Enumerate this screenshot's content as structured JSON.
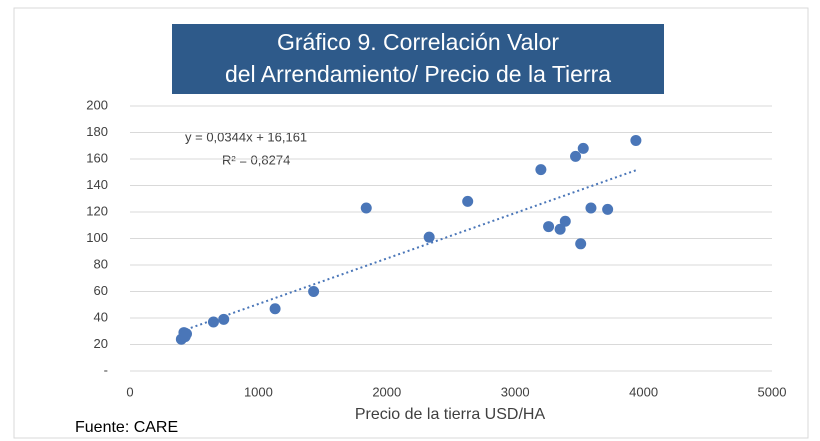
{
  "chart_data": {
    "type": "scatter",
    "title": "Gráfico 9. Correlación Valor del Arrendamiento/ Precio de la Tierra",
    "x_label": "Precio de la tierra USD/HA",
    "annotations": [
      "y = 0,0344x + 16,161",
      "R² = 0,8274"
    ],
    "source": "Fuente: CARE",
    "color": "#4a76b8",
    "trendline": true,
    "x": [
      400,
      420,
      440,
      430,
      650,
      730,
      1130,
      1430,
      1840,
      2330,
      2630,
      3200,
      3260,
      3350,
      3390,
      3470,
      3510,
      3530,
      3590,
      3720,
      3940
    ],
    "values": [
      24,
      29,
      28,
      26,
      37,
      39,
      47,
      60,
      123,
      101,
      128,
      152,
      109,
      107,
      113,
      162,
      96,
      168,
      123,
      122,
      174
    ],
    "xlim": [
      0,
      5000
    ],
    "xticks": [
      0,
      1000,
      2000,
      3000,
      4000,
      5000
    ],
    "ylim": [
      0,
      200
    ],
    "yticks": [
      {
        "value": 0,
        "label": "-"
      },
      20,
      40,
      60,
      80,
      100,
      120,
      140,
      160,
      180,
      200
    ],
    "grid": true
  }
}
